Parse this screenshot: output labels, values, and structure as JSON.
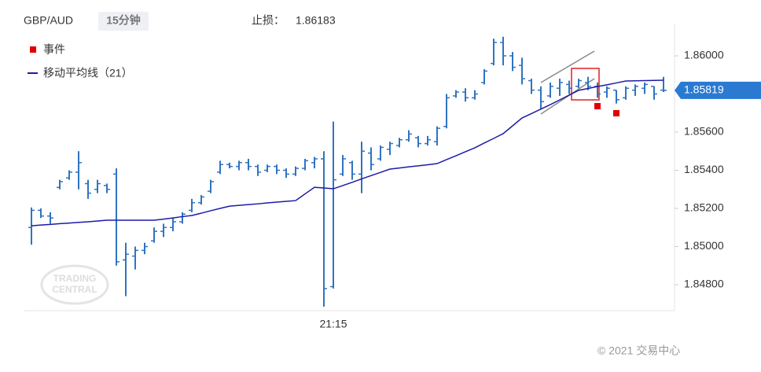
{
  "chart_data": {
    "type": "ohlc",
    "symbol": "GBP/AUD",
    "interval": "15分钟",
    "stop_loss_label": "止损：",
    "stop_loss": 1.86183,
    "categories": [
      null,
      null,
      null,
      null,
      null,
      null,
      null,
      null,
      null,
      null,
      null,
      null,
      null,
      null,
      null,
      null,
      null,
      null,
      null,
      null,
      null,
      null,
      null,
      null,
      null,
      null,
      null,
      null,
      null,
      null,
      null,
      null,
      "21:15",
      null,
      null,
      null,
      null,
      null,
      null,
      null,
      null,
      null,
      null,
      null,
      null,
      null,
      null,
      null,
      null,
      null,
      null,
      null,
      null,
      null,
      null,
      null,
      null,
      null,
      null,
      null,
      null,
      null,
      null,
      null,
      null,
      null,
      null,
      null
    ],
    "open": [
      1.851,
      1.8519,
      1.8516,
      1.8531,
      1.8536,
      1.8539,
      1.8533,
      1.853,
      1.8532,
      1.8538,
      1.8493,
      1.8495,
      1.8498,
      1.8503,
      1.8508,
      1.851,
      1.8513,
      1.8519,
      1.8523,
      1.8529,
      1.8539,
      1.8543,
      1.8542,
      1.8544,
      1.8542,
      1.854,
      1.8542,
      1.854,
      1.8538,
      1.8541,
      1.8544,
      1.8546,
      1.8479,
      1.8538,
      1.8544,
      1.8538,
      1.8549,
      1.8546,
      1.8551,
      1.8553,
      1.8556,
      1.8557,
      1.8554,
      1.8555,
      1.8563,
      1.8579,
      1.8581,
      1.8578,
      1.8586,
      1.8596,
      1.8607,
      1.86,
      1.8595,
      1.8587,
      1.8582,
      1.8579,
      1.8583,
      1.8585,
      1.8584,
      1.8586,
      1.8584,
      1.8581,
      1.8582,
      1.8578,
      1.8582,
      1.8583,
      1.8584,
      1.8582
    ],
    "high": [
      1.85205,
      1.852,
      1.8518,
      1.8535,
      1.854,
      1.855,
      1.8535,
      1.8535,
      1.8533,
      1.8541,
      1.8502,
      1.85,
      1.8502,
      1.851,
      1.8512,
      1.8515,
      1.8518,
      1.8525,
      1.8527,
      1.8535,
      1.8545,
      1.8544,
      1.8545,
      1.8546,
      1.8543,
      1.8543,
      1.8543,
      1.8541,
      1.8542,
      1.8546,
      1.8547,
      1.855,
      1.85655,
      1.8548,
      1.8545,
      1.8555,
      1.8552,
      1.8553,
      1.8555,
      1.8557,
      1.8561,
      1.8558,
      1.8558,
      1.8563,
      1.858,
      1.8582,
      1.8583,
      1.8582,
      1.8593,
      1.8609,
      1.861,
      1.8602,
      1.8599,
      1.8588,
      1.8584,
      1.8586,
      1.8588,
      1.8587,
      1.8588,
      1.8589,
      1.8586,
      1.8584,
      1.8582,
      1.8584,
      1.8585,
      1.8586,
      1.8584,
      1.8589
    ],
    "low": [
      1.8501,
      1.8515,
      1.8512,
      1.853,
      1.8535,
      1.853,
      1.8525,
      1.8528,
      1.8528,
      1.849,
      1.8474,
      1.8488,
      1.8496,
      1.8502,
      1.8505,
      1.8508,
      1.8512,
      1.8518,
      1.8522,
      1.8528,
      1.8538,
      1.8541,
      1.854,
      1.854,
      1.8537,
      1.8539,
      1.8538,
      1.8536,
      1.8537,
      1.854,
      1.8541,
      1.84685,
      1.8478,
      1.8537,
      1.8535,
      1.8528,
      1.854,
      1.8545,
      1.8548,
      1.8552,
      1.8555,
      1.8552,
      1.8553,
      1.8553,
      1.8562,
      1.8578,
      1.8576,
      1.8577,
      1.8585,
      1.8595,
      1.8595,
      1.8592,
      1.8585,
      1.858,
      1.8572,
      1.8578,
      1.8579,
      1.858,
      1.8583,
      1.8582,
      1.8578,
      1.8578,
      1.8575,
      1.8577,
      1.8579,
      1.858,
      1.8577,
      1.8581
    ],
    "close": [
      1.8519,
      1.8516,
      1.8515,
      1.8534,
      1.8539,
      1.8544,
      1.8528,
      1.8533,
      1.853,
      1.8492,
      1.8496,
      1.8498,
      1.85,
      1.8508,
      1.851,
      1.8513,
      1.8517,
      1.8523,
      1.8526,
      1.8534,
      1.8543,
      1.8542,
      1.8544,
      1.8542,
      1.8539,
      1.8542,
      1.854,
      1.8538,
      1.8541,
      1.8545,
      1.8546,
      1.8478,
      1.8535,
      1.8546,
      1.8538,
      1.855,
      1.8543,
      1.8552,
      1.8554,
      1.8556,
      1.8559,
      1.8554,
      1.8556,
      1.8562,
      1.8578,
      1.8581,
      1.8578,
      1.858,
      1.8592,
      1.8607,
      1.86,
      1.8594,
      1.8588,
      1.8582,
      1.8576,
      1.8584,
      1.8586,
      1.8583,
      1.8587,
      1.8584,
      1.858,
      1.8583,
      1.8577,
      1.8583,
      1.8584,
      1.8585,
      1.858,
      1.85819
    ],
    "color": "#2f74c0",
    "ma": {
      "name": "移动平均线（21）",
      "color": "#1c1ca8",
      "values": [
        1.85109,
        1.85113,
        1.85116,
        1.8512,
        1.85123,
        1.85127,
        1.8513,
        1.85134,
        1.85138,
        1.85138,
        1.85138,
        1.85138,
        1.85138,
        1.85138,
        1.85144,
        1.8515,
        1.85157,
        1.85163,
        1.85175,
        1.85188,
        1.852,
        1.85212,
        1.85216,
        1.8522,
        1.85224,
        1.85229,
        1.85233,
        1.85237,
        1.85241,
        1.85276,
        1.85311,
        1.85307,
        1.85303,
        1.8532,
        1.85337,
        1.85355,
        1.85372,
        1.85389,
        1.85406,
        1.85412,
        1.85418,
        1.85423,
        1.85429,
        1.85435,
        1.85456,
        1.85476,
        1.85497,
        1.85518,
        1.85543,
        1.85567,
        1.85592,
        1.85633,
        1.85674,
        1.85697,
        1.85721,
        1.85744,
        1.85769,
        1.85794,
        1.85819,
        1.85829,
        1.85839,
        1.85848,
        1.85858,
        1.85868,
        1.85869,
        1.8587,
        1.85871,
        1.85872
      ]
    },
    "events": {
      "name": "事件",
      "color": "#e00000",
      "values": [
        null,
        null,
        null,
        null,
        null,
        null,
        null,
        null,
        null,
        null,
        null,
        null,
        null,
        null,
        null,
        null,
        null,
        null,
        null,
        null,
        null,
        null,
        null,
        null,
        null,
        null,
        null,
        null,
        null,
        null,
        null,
        null,
        null,
        null,
        null,
        null,
        null,
        null,
        null,
        null,
        null,
        null,
        null,
        null,
        null,
        null,
        null,
        null,
        null,
        null,
        null,
        null,
        null,
        null,
        null,
        null,
        null,
        null,
        null,
        null,
        1.85736,
        null,
        1.85699,
        null,
        null,
        null,
        null,
        null
      ]
    },
    "ylim": [
      1.84664,
      1.86169
    ],
    "yticks": [
      {
        "value": 1.848,
        "label": "1.84800"
      },
      {
        "value": 1.85,
        "label": "1.85000"
      },
      {
        "value": 1.852,
        "label": "1.85200"
      },
      {
        "value": 1.854,
        "label": "1.85400"
      },
      {
        "value": 1.856,
        "label": "1.85600"
      },
      {
        "value": 1.86,
        "label": "1.86000"
      }
    ],
    "price_tag_color": "#2a7ad2",
    "watermark": [
      "TRADING",
      "CENTRAL"
    ],
    "copyright": "© 2021 交易中心"
  }
}
